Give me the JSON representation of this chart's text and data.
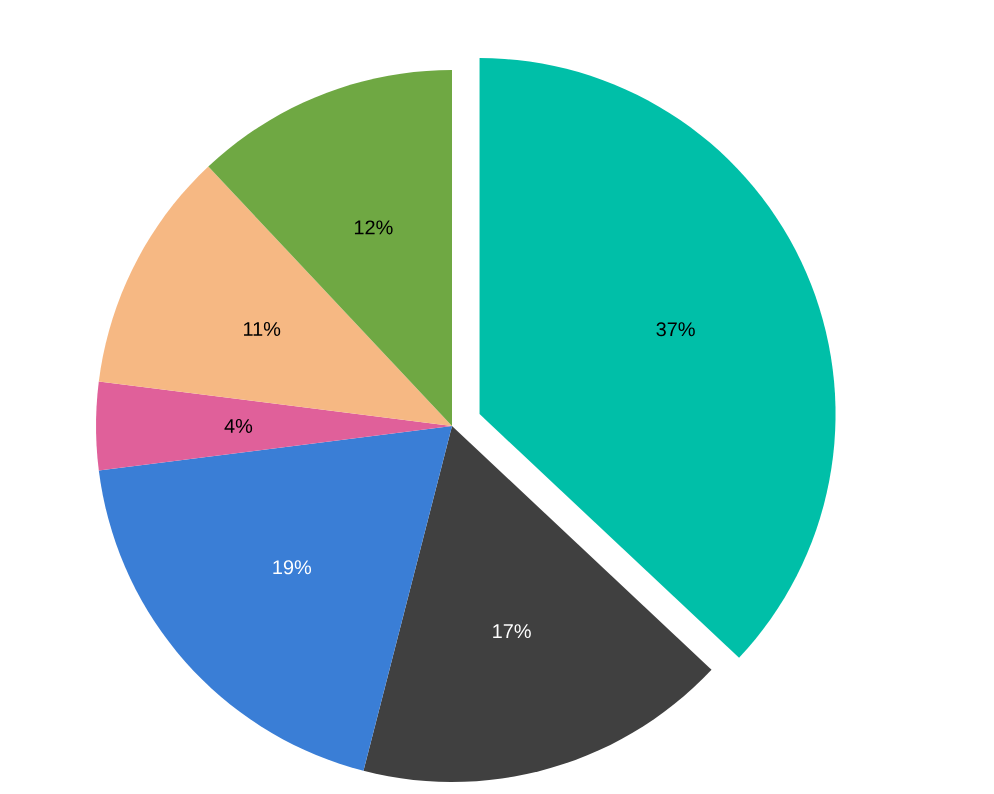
{
  "chart_data": {
    "type": "pie",
    "categories": [
      null,
      null,
      null,
      null,
      null,
      null
    ],
    "values": [
      37,
      17,
      19,
      4,
      11,
      12
    ],
    "value_labels": [
      "37%",
      "17%",
      "19%",
      "4%",
      "11%",
      "12%"
    ],
    "colors": [
      "#00bfa8",
      "#404040",
      "#3a7ed6",
      "#e0609a",
      "#f6b883",
      "#6fa843"
    ]
  }
}
